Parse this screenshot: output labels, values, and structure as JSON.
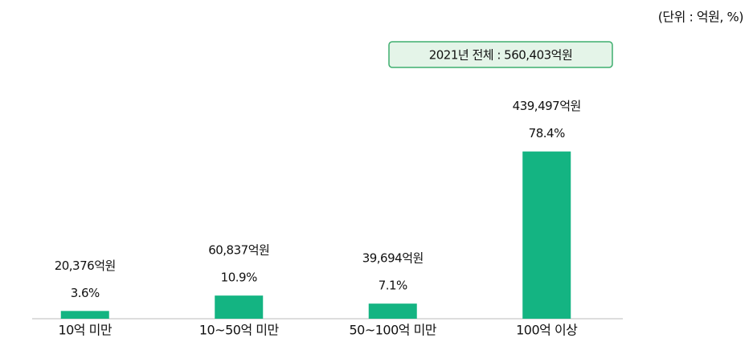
{
  "chart_data": {
    "type": "bar",
    "unit_note": "(단위 : 억원, %)",
    "total_label": "2021년 전체 : 560,403억원",
    "categories": [
      "10억 미만",
      "10~50억 미만",
      "50~100억 미만",
      "100억 이상"
    ],
    "values": [
      20376,
      60837,
      39694,
      439497
    ],
    "value_labels": [
      "20,376억원",
      "60,837억원",
      "39,694억원",
      "439,497억원"
    ],
    "percent_labels": [
      "3.6%",
      "10.9%",
      "7.1%",
      "78.4%"
    ],
    "color": "#14b482",
    "ylim": [
      0,
      500000
    ]
  }
}
